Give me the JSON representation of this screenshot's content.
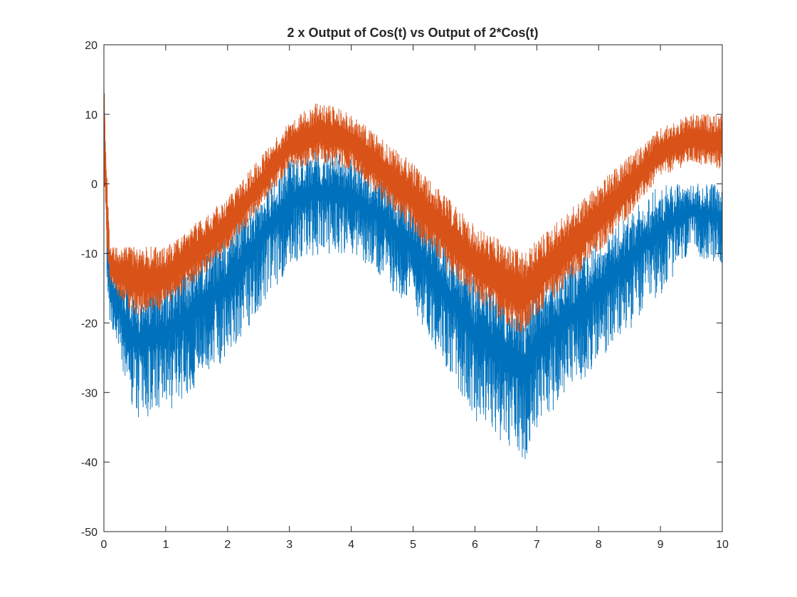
{
  "figure": {
    "background": "#ffffff",
    "axes_color": "#262626"
  },
  "chart_data": {
    "type": "line",
    "title": "2 x Output of Cos(t) vs Output of 2*Cos(t)",
    "xlabel": "",
    "ylabel": "",
    "xlim": [
      0,
      10
    ],
    "ylim": [
      -50,
      20
    ],
    "x_ticks": [
      "0",
      "1",
      "2",
      "3",
      "4",
      "5",
      "6",
      "7",
      "8",
      "9",
      "10"
    ],
    "y_ticks": [
      "20",
      "10",
      "0",
      "-10",
      "-20",
      "-30",
      "-40",
      "-50"
    ],
    "grid": false,
    "legend": "none",
    "box": true,
    "series": [
      {
        "color": "#0072BD",
        "description": "blue noisy oscillating signal; envelope follows a slow cosine-shaped baseline",
        "x": [
          0,
          0.05,
          0.1,
          0.5,
          1,
          2,
          3,
          3.5,
          4,
          5,
          6,
          6.8,
          7,
          8,
          9,
          9.5,
          10
        ],
        "upper": [
          16,
          0,
          -12,
          -15,
          -14,
          -7,
          4,
          5,
          4,
          -3,
          -13,
          -17,
          -15,
          -8,
          0,
          0,
          0
        ],
        "lower": [
          5,
          -15,
          -20,
          -34,
          -33,
          -25,
          -12,
          -10,
          -10,
          -18,
          -34,
          -40,
          -35,
          -26,
          -16,
          -10,
          -12
        ]
      },
      {
        "color": "#D95319",
        "description": "orange noisy oscillating signal; band follows the same slow cosine baseline, shifted upward",
        "x": [
          0,
          0.05,
          0.1,
          0.5,
          1,
          2,
          3,
          3.5,
          4,
          5,
          6,
          6.8,
          7,
          8,
          9,
          9.5,
          10
        ],
        "upper": [
          15,
          2,
          -9,
          -9,
          -9,
          -2,
          9,
          12,
          10,
          3,
          -6,
          -10,
          -8,
          0,
          8,
          10,
          10
        ],
        "lower": [
          2,
          -10,
          -15,
          -19,
          -18,
          -10,
          2,
          3,
          2,
          -7,
          -17,
          -22,
          -19,
          -10,
          1,
          3,
          2
        ]
      }
    ]
  }
}
